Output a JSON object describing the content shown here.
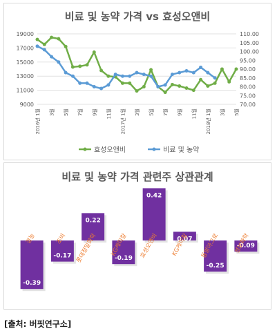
{
  "line_chart": {
    "title": "비료 및 농약 가격 vs 효성오앤비"
  },
  "bar_chart": {
    "title": "비료 및 농약 가격 관련주 상관관계"
  },
  "source": "[출처: 버핏연구소]",
  "colors": {
    "green": "#70ad47",
    "blue": "#5b9bd5",
    "purple": "#7030a0",
    "label_orange": "#ed7d31",
    "axis_text": "#595959"
  },
  "chart_data": [
    {
      "type": "line",
      "title": "비료 및 농약 가격 vs 효성오앤비",
      "x": [
        "2016년 1월",
        "2",
        "3",
        "4",
        "5",
        "6",
        "7",
        "8",
        "9",
        "10",
        "11",
        "12",
        "2017년 1월",
        "2",
        "3",
        "4",
        "5",
        "6",
        "7",
        "8",
        "9",
        "10",
        "11",
        "12",
        "2018년 1월",
        "2",
        "3",
        "4",
        "5"
      ],
      "x_tick_labels": [
        "2016년 1월",
        "3월",
        "5월",
        "7월",
        "9월",
        "11월",
        "2017년 1월",
        "3월",
        "5월",
        "7월",
        "9월",
        "11월",
        "2018년 1월",
        "3월",
        "5월"
      ],
      "y_left": {
        "ticks": [
          "9000",
          "11000",
          "13000",
          "15000",
          "17000",
          "19000"
        ],
        "ylim": [
          9000,
          19000
        ]
      },
      "y_right": {
        "ticks": [
          "70.00",
          "75.00",
          "80.00",
          "85.00",
          "90.00",
          "95.00",
          "100.00",
          "105.00",
          "110.00"
        ],
        "ylim": [
          70,
          110
        ]
      },
      "legend": "bottom",
      "series": [
        {
          "name": "효성오앤비",
          "axis": "left",
          "color": "#70ad47",
          "values": [
            18200,
            17500,
            18500,
            18300,
            17200,
            14300,
            14400,
            14600,
            16400,
            13800,
            13000,
            12900,
            12000,
            12000,
            10900,
            11500,
            13900,
            11500,
            10700,
            11800,
            11600,
            11300,
            11000,
            12500,
            11600,
            12000,
            14000,
            12200,
            14000
          ]
        },
        {
          "name": "비료 및 농약",
          "axis": "right",
          "color": "#5b9bd5",
          "values": [
            103,
            101,
            97,
            94,
            88,
            86,
            82,
            82,
            80,
            79,
            81,
            87,
            86,
            86,
            88,
            87,
            86,
            80,
            81,
            87,
            88,
            89,
            88,
            91,
            88,
            85,
            null,
            null,
            null
          ]
        }
      ]
    },
    {
      "type": "bar",
      "title": "비료 및 농약 가격 관련주 상관관계",
      "categories": [
        "경농",
        "조비",
        "롯데정밀화학",
        "KG케미칼",
        "효성오앤비",
        "KG케미칼",
        "동방아그로",
        "성보화학"
      ],
      "values": [
        -0.39,
        -0.17,
        0.22,
        -0.19,
        0.42,
        0.07,
        -0.25,
        -0.09
      ],
      "value_labels": [
        "-0.39",
        "-0.17",
        "0.22",
        "-0.19",
        "0.42",
        "0.07",
        "-0.25",
        "-0.09"
      ],
      "ylim": [
        -0.45,
        0.45
      ],
      "color": "#7030a0"
    }
  ]
}
